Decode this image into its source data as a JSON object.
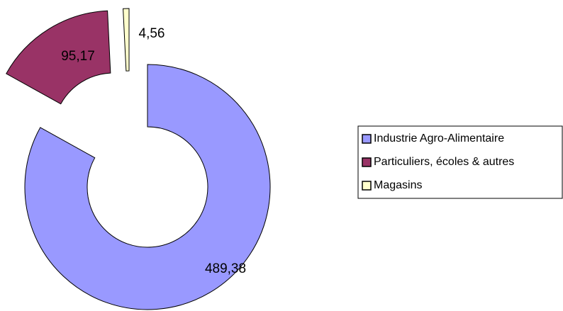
{
  "chart_data": {
    "type": "donut",
    "categories": [
      "Industrie Agro-Alimentaire",
      "Particuliers, écoles & autres",
      "Magasins"
    ],
    "values": [
      489.38,
      95.17,
      4.56
    ],
    "value_labels": [
      "489,38",
      "95,17",
      "4,56"
    ],
    "colors": [
      "#9999ff",
      "#993366",
      "#ffffcc"
    ],
    "legend": "right"
  }
}
